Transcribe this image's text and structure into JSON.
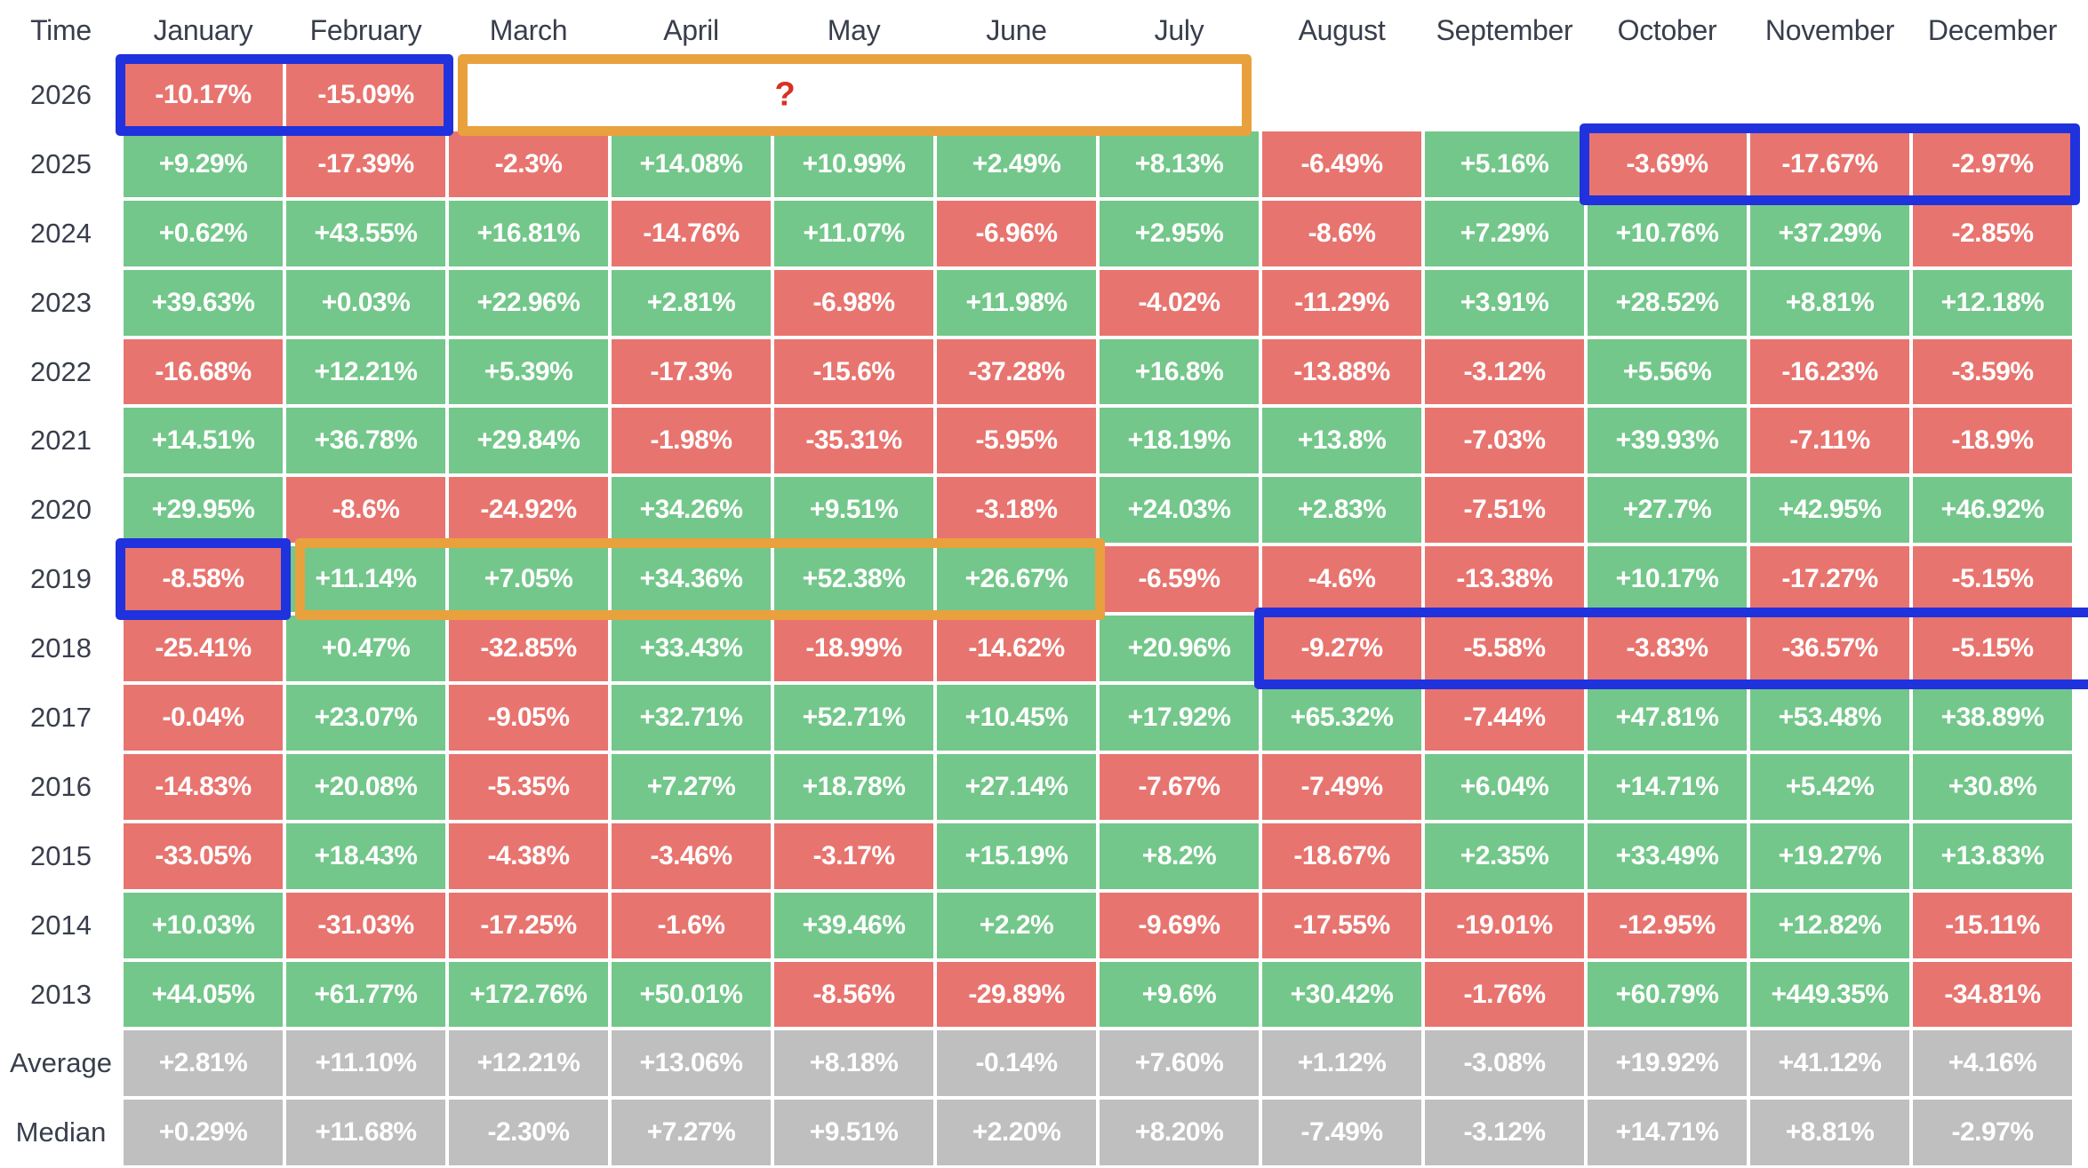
{
  "table": {
    "columns": [
      "Time",
      "January",
      "February",
      "March",
      "April",
      "May",
      "June",
      "July",
      "August",
      "September",
      "October",
      "November",
      "December"
    ],
    "rows": [
      {
        "label": "2026",
        "cells": [
          "-10.17%",
          "-15.09%",
          null,
          null,
          null,
          null,
          null,
          null,
          null,
          null,
          null,
          null
        ]
      },
      {
        "label": "2025",
        "cells": [
          "+9.29%",
          "-17.39%",
          "-2.3%",
          "+14.08%",
          "+10.99%",
          "+2.49%",
          "+8.13%",
          "-6.49%",
          "+5.16%",
          "-3.69%",
          "-17.67%",
          "-2.97%"
        ]
      },
      {
        "label": "2024",
        "cells": [
          "+0.62%",
          "+43.55%",
          "+16.81%",
          "-14.76%",
          "+11.07%",
          "-6.96%",
          "+2.95%",
          "-8.6%",
          "+7.29%",
          "+10.76%",
          "+37.29%",
          "-2.85%"
        ]
      },
      {
        "label": "2023",
        "cells": [
          "+39.63%",
          "+0.03%",
          "+22.96%",
          "+2.81%",
          "-6.98%",
          "+11.98%",
          "-4.02%",
          "-11.29%",
          "+3.91%",
          "+28.52%",
          "+8.81%",
          "+12.18%"
        ]
      },
      {
        "label": "2022",
        "cells": [
          "-16.68%",
          "+12.21%",
          "+5.39%",
          "-17.3%",
          "-15.6%",
          "-37.28%",
          "+16.8%",
          "-13.88%",
          "-3.12%",
          "+5.56%",
          "-16.23%",
          "-3.59%"
        ]
      },
      {
        "label": "2021",
        "cells": [
          "+14.51%",
          "+36.78%",
          "+29.84%",
          "-1.98%",
          "-35.31%",
          "-5.95%",
          "+18.19%",
          "+13.8%",
          "-7.03%",
          "+39.93%",
          "-7.11%",
          "-18.9%"
        ]
      },
      {
        "label": "2020",
        "cells": [
          "+29.95%",
          "-8.6%",
          "-24.92%",
          "+34.26%",
          "+9.51%",
          "-3.18%",
          "+24.03%",
          "+2.83%",
          "-7.51%",
          "+27.7%",
          "+42.95%",
          "+46.92%"
        ]
      },
      {
        "label": "2019",
        "cells": [
          "-8.58%",
          "+11.14%",
          "+7.05%",
          "+34.36%",
          "+52.38%",
          "+26.67%",
          "-6.59%",
          "-4.6%",
          "-13.38%",
          "+10.17%",
          "-17.27%",
          "-5.15%"
        ]
      },
      {
        "label": "2018",
        "cells": [
          "-25.41%",
          "+0.47%",
          "-32.85%",
          "+33.43%",
          "-18.99%",
          "-14.62%",
          "+20.96%",
          "-9.27%",
          "-5.58%",
          "-3.83%",
          "-36.57%",
          "-5.15%"
        ]
      },
      {
        "label": "2017",
        "cells": [
          "-0.04%",
          "+23.07%",
          "-9.05%",
          "+32.71%",
          "+52.71%",
          "+10.45%",
          "+17.92%",
          "+65.32%",
          "-7.44%",
          "+47.81%",
          "+53.48%",
          "+38.89%"
        ]
      },
      {
        "label": "2016",
        "cells": [
          "-14.83%",
          "+20.08%",
          "-5.35%",
          "+7.27%",
          "+18.78%",
          "+27.14%",
          "-7.67%",
          "-7.49%",
          "+6.04%",
          "+14.71%",
          "+5.42%",
          "+30.8%"
        ]
      },
      {
        "label": "2015",
        "cells": [
          "-33.05%",
          "+18.43%",
          "-4.38%",
          "-3.46%",
          "-3.17%",
          "+15.19%",
          "+8.2%",
          "-18.67%",
          "+2.35%",
          "+33.49%",
          "+19.27%",
          "+13.83%"
        ]
      },
      {
        "label": "2014",
        "cells": [
          "+10.03%",
          "-31.03%",
          "-17.25%",
          "-1.6%",
          "+39.46%",
          "+2.2%",
          "-9.69%",
          "-17.55%",
          "-19.01%",
          "-12.95%",
          "+12.82%",
          "-15.11%"
        ]
      },
      {
        "label": "2013",
        "cells": [
          "+44.05%",
          "+61.77%",
          "+172.76%",
          "+50.01%",
          "-8.56%",
          "-29.89%",
          "+9.6%",
          "+30.42%",
          "-1.76%",
          "+60.79%",
          "+449.35%",
          "-34.81%"
        ]
      },
      {
        "label": "Average",
        "summary": true,
        "cells": [
          "+2.81%",
          "+11.10%",
          "+12.21%",
          "+13.06%",
          "+8.18%",
          "-0.14%",
          "+7.60%",
          "+1.12%",
          "-3.08%",
          "+19.92%",
          "+41.12%",
          "+4.16%"
        ]
      },
      {
        "label": "Median",
        "summary": true,
        "cells": [
          "+0.29%",
          "+11.68%",
          "-2.30%",
          "+7.27%",
          "+9.51%",
          "+2.20%",
          "+8.20%",
          "-7.49%",
          "-3.12%",
          "+14.71%",
          "+8.81%",
          "-2.97%"
        ]
      }
    ]
  },
  "annotations": [
    {
      "color": "blue",
      "row": "2026",
      "from": "January",
      "to": "February"
    },
    {
      "color": "orange",
      "row": "2026",
      "from": "March",
      "to": "July",
      "text": "?"
    },
    {
      "color": "blue",
      "row": "2025",
      "from": "October",
      "to": "December"
    },
    {
      "color": "blue",
      "row": "2019",
      "from": "January",
      "to": "January"
    },
    {
      "color": "orange",
      "row": "2019",
      "from": "February",
      "to": "June"
    },
    {
      "color": "blue",
      "row": "2018",
      "from": "August",
      "to": "December",
      "clipped_right": true
    }
  ],
  "colors": {
    "positive": "#73c78a",
    "negative": "#e8746f",
    "summary": "#bfbfbf",
    "annotation_blue": "#2032dd",
    "annotation_orange": "#e9a13e",
    "question_mark": "#d93025",
    "header_text": "#383e4c"
  }
}
